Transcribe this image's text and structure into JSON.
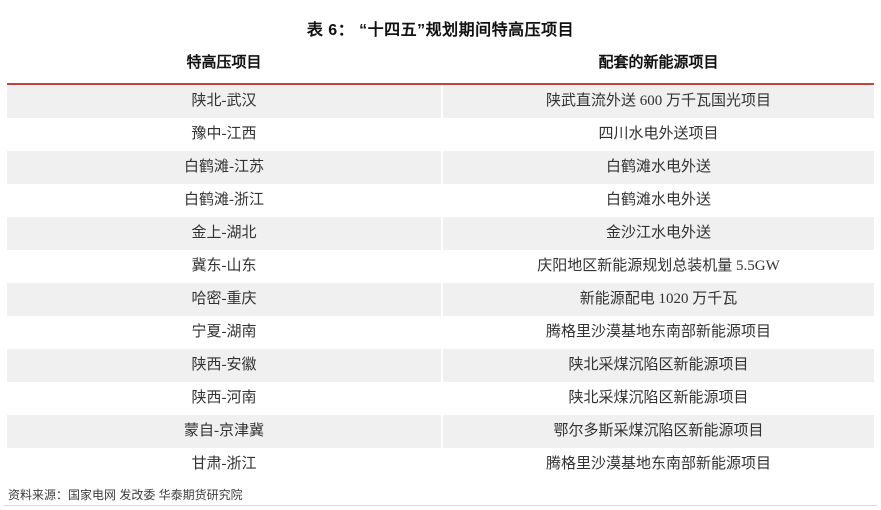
{
  "title": "表 6： “十四五”规划期间特高压项目",
  "columns": [
    "特高压项目",
    "配套的新能源项目"
  ],
  "rows": [
    {
      "uhv": "陕北-武汉",
      "ne": "陕武直流外送 600 万千瓦国光项目"
    },
    {
      "uhv": "豫中-江西",
      "ne": "四川水电外送项目"
    },
    {
      "uhv": "白鹤滩-江苏",
      "ne": "白鹤滩水电外送"
    },
    {
      "uhv": "白鹤滩-浙江",
      "ne": "白鹤滩水电外送"
    },
    {
      "uhv": "金上-湖北",
      "ne": "金沙江水电外送"
    },
    {
      "uhv": "冀东-山东",
      "ne": "庆阳地区新能源规划总装机量 5.5GW"
    },
    {
      "uhv": "哈密-重庆",
      "ne": "新能源配电 1020 万千瓦"
    },
    {
      "uhv": "宁夏-湖南",
      "ne": "腾格里沙漠基地东南部新能源项目"
    },
    {
      "uhv": "陕西-安徽",
      "ne": "陕北采煤沉陷区新能源项目"
    },
    {
      "uhv": "陕西-河南",
      "ne": "陕北采煤沉陷区新能源项目"
    },
    {
      "uhv": "蒙自-京津冀",
      "ne": "鄂尔多斯采煤沉陷区新能源项目"
    },
    {
      "uhv": "甘肃-浙江",
      "ne": "腾格里沙漠基地东南部新能源项目"
    }
  ],
  "source": "资料来源：国家电网 发改委 华泰期货研究院",
  "colors": {
    "accent_red": "#c0453f",
    "stripe": "#f0f0f0",
    "bottom_rule": "#d9d9d9"
  },
  "chart_data": {
    "type": "table",
    "title": "表 6： “十四五”规划期间特高压项目",
    "columns": [
      "特高压项目",
      "配套的新能源项目"
    ],
    "rows": [
      [
        "陕北-武汉",
        "陕武直流外送 600 万千瓦国光项目"
      ],
      [
        "豫中-江西",
        "四川水电外送项目"
      ],
      [
        "白鹤滩-江苏",
        "白鹤滩水电外送"
      ],
      [
        "白鹤滩-浙江",
        "白鹤滩水电外送"
      ],
      [
        "金上-湖北",
        "金沙江水电外送"
      ],
      [
        "冀东-山东",
        "庆阳地区新能源规划总装机量 5.5GW"
      ],
      [
        "哈密-重庆",
        "新能源配电 1020 万千瓦"
      ],
      [
        "宁夏-湖南",
        "腾格里沙漠基地东南部新能源项目"
      ],
      [
        "陕西-安徽",
        "陕北采煤沉陷区新能源项目"
      ],
      [
        "陕西-河南",
        "陕北采煤沉陷区新能源项目"
      ],
      [
        "蒙自-京津冀",
        "鄂尔多斯采煤沉陷区新能源项目"
      ],
      [
        "甘肃-浙江",
        "腾格里沙漠基地东南部新能源项目"
      ]
    ],
    "source": "资料来源：国家电网 发改委 华泰期货研究院"
  }
}
